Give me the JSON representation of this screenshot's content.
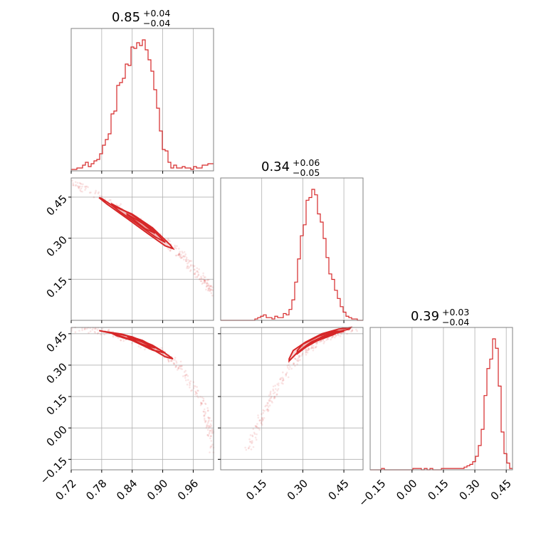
{
  "colors": {
    "series": "#d62728",
    "frame": "#808080",
    "grid": "#b0b0b0"
  },
  "chart_data": {
    "type": "corner",
    "parameters": [
      {
        "title": {
          "median": "0.85",
          "plus": "+0.04",
          "minus": "−0.04"
        },
        "range": [
          0.72,
          1.0
        ],
        "ticks": [
          0.72,
          0.78,
          0.84,
          0.9,
          0.96
        ],
        "tick_labels": [
          "0.72",
          "0.78",
          "0.84",
          "0.90",
          "0.96"
        ],
        "hist": {
          "bins": [
            0.72,
            0.7256,
            0.7312,
            0.7368,
            0.7424,
            0.748,
            0.7536,
            0.7592,
            0.7648,
            0.7704,
            0.776,
            0.7816,
            0.7872,
            0.7928,
            0.7984,
            0.804,
            0.8096,
            0.8152,
            0.8208,
            0.8264,
            0.832,
            0.8376,
            0.8432,
            0.8488,
            0.8544,
            0.86,
            0.8656,
            0.8712,
            0.8768,
            0.8824,
            0.888,
            0.8936,
            0.8992,
            0.9048,
            0.9104,
            0.916,
            0.9216,
            0.9272,
            0.9328,
            0.9384,
            0.944,
            0.9496,
            0.9552,
            0.9608,
            0.9664,
            0.972,
            0.9776,
            0.9832,
            0.9888,
            0.9944,
            1.0
          ],
          "counts": [
            1,
            1,
            2,
            2,
            4,
            6,
            3,
            5,
            7,
            8,
            12,
            18,
            22,
            26,
            40,
            42,
            60,
            62,
            65,
            75,
            74,
            87,
            86,
            90,
            88,
            92,
            85,
            78,
            70,
            57,
            44,
            28,
            15,
            14,
            6,
            2,
            4,
            2,
            2,
            3,
            2,
            2,
            1,
            3,
            2,
            2,
            4,
            4,
            5,
            5
          ]
        }
      },
      {
        "title": {
          "median": "0.34",
          "plus": "+0.06",
          "minus": "−0.05"
        },
        "range": [
          0.0,
          0.52
        ],
        "ticks": [
          0.15,
          0.3,
          0.45
        ],
        "tick_labels": [
          "0.15",
          "0.30",
          "0.45"
        ],
        "hist": {
          "bins": [
            0.0,
            0.0104,
            0.0208,
            0.0312,
            0.0416,
            0.052,
            0.0624,
            0.0728,
            0.0832,
            0.0936,
            0.104,
            0.1144,
            0.1248,
            0.1352,
            0.1456,
            0.156,
            0.1664,
            0.1768,
            0.1872,
            0.1976,
            0.208,
            0.2184,
            0.2288,
            0.2392,
            0.2496,
            0.26,
            0.2704,
            0.2808,
            0.2912,
            0.3016,
            0.312,
            0.3224,
            0.3328,
            0.3432,
            0.3536,
            0.364,
            0.3744,
            0.3848,
            0.3952,
            0.4056,
            0.416,
            0.4264,
            0.4368,
            0.4472,
            0.4576,
            0.468,
            0.4784,
            0.4888,
            0.4992,
            0.5096,
            0.52
          ],
          "counts": [
            0,
            0,
            0,
            0,
            0,
            0,
            0,
            0,
            0,
            0,
            0,
            0,
            1,
            2,
            3,
            4,
            2,
            2,
            1,
            3,
            2,
            2,
            5,
            4,
            8,
            15,
            28,
            45,
            62,
            70,
            88,
            90,
            96,
            92,
            78,
            72,
            60,
            46,
            34,
            30,
            22,
            16,
            10,
            6,
            3,
            2,
            1,
            1,
            0,
            0
          ]
        }
      },
      {
        "title": {
          "median": "0.39",
          "plus": "+0.03",
          "minus": "−0.04"
        },
        "range": [
          -0.2,
          0.48
        ],
        "ticks": [
          -0.15,
          0.0,
          0.15,
          0.3,
          0.45
        ],
        "tick_labels": [
          "−0.15",
          "0.00",
          "0.15",
          "0.30",
          "0.45"
        ],
        "hist": {
          "bins": [
            -0.2,
            -0.1864,
            -0.1728,
            -0.1592,
            -0.1456,
            -0.132,
            -0.1184,
            -0.1048,
            -0.0912,
            -0.0776,
            -0.064,
            -0.0504,
            -0.0368,
            -0.0232,
            -0.0096,
            0.004,
            0.0176,
            0.0312,
            0.0448,
            0.0584,
            0.072,
            0.0856,
            0.0992,
            0.1128,
            0.1264,
            0.14,
            0.1536,
            0.1672,
            0.1808,
            0.1944,
            0.208,
            0.2216,
            0.2352,
            0.2488,
            0.2624,
            0.276,
            0.2896,
            0.3032,
            0.3168,
            0.3304,
            0.344,
            0.3576,
            0.3712,
            0.3848,
            0.3984,
            0.412,
            0.4256,
            0.4392,
            0.4528,
            0.4664,
            0.48
          ],
          "counts": [
            0,
            0,
            0,
            0,
            1,
            0,
            0,
            0,
            0,
            0,
            0,
            0,
            0,
            0,
            0,
            1,
            1,
            1,
            0,
            1,
            0,
            1,
            0,
            0,
            0,
            1,
            1,
            1,
            1,
            1,
            1,
            1,
            1,
            2,
            3,
            4,
            6,
            10,
            18,
            30,
            55,
            75,
            82,
            97,
            90,
            62,
            28,
            12,
            5,
            1
          ]
        }
      }
    ],
    "scatter": {
      "p1_vs_p0": {
        "ridge": [
          [
            0.72,
            0.505
          ],
          [
            0.78,
            0.445
          ],
          [
            0.84,
            0.38
          ],
          [
            0.9,
            0.3
          ],
          [
            0.94,
            0.23
          ],
          [
            0.97,
            0.17
          ],
          [
            0.985,
            0.14
          ],
          [
            1.0,
            0.1
          ]
        ],
        "contours": [
          [
            [
              0.78,
              0.445
            ],
            [
              0.8,
              0.42
            ],
            [
              0.84,
              0.388
            ],
            [
              0.88,
              0.338
            ],
            [
              0.915,
              0.275
            ],
            [
              0.92,
              0.262
            ],
            [
              0.905,
              0.272
            ],
            [
              0.87,
              0.318
            ],
            [
              0.83,
              0.372
            ],
            [
              0.79,
              0.425
            ],
            [
              0.775,
              0.448
            ]
          ],
          [
            [
              0.8,
              0.425
            ],
            [
              0.84,
              0.385
            ],
            [
              0.88,
              0.332
            ],
            [
              0.905,
              0.285
            ],
            [
              0.885,
              0.305
            ],
            [
              0.85,
              0.352
            ],
            [
              0.815,
              0.398
            ],
            [
              0.8,
              0.42
            ]
          ],
          [
            [
              0.83,
              0.388
            ],
            [
              0.86,
              0.355
            ],
            [
              0.885,
              0.318
            ],
            [
              0.865,
              0.335
            ],
            [
              0.84,
              0.372
            ],
            [
              0.83,
              0.385
            ]
          ]
        ]
      },
      "p2_vs_p0": {
        "ridge": [
          [
            0.72,
            0.475
          ],
          [
            0.78,
            0.462
          ],
          [
            0.84,
            0.42
          ],
          [
            0.9,
            0.36
          ],
          [
            0.93,
            0.3
          ],
          [
            0.96,
            0.2
          ],
          [
            0.985,
            0.08
          ],
          [
            0.995,
            -0.02
          ],
          [
            1.0,
            -0.12
          ]
        ],
        "contours": [
          [
            [
              0.78,
              0.462
            ],
            [
              0.82,
              0.448
            ],
            [
              0.86,
              0.418
            ],
            [
              0.9,
              0.365
            ],
            [
              0.92,
              0.33
            ],
            [
              0.905,
              0.34
            ],
            [
              0.87,
              0.39
            ],
            [
              0.83,
              0.428
            ],
            [
              0.8,
              0.452
            ],
            [
              0.775,
              0.465
            ]
          ],
          [
            [
              0.8,
              0.455
            ],
            [
              0.84,
              0.435
            ],
            [
              0.88,
              0.395
            ],
            [
              0.905,
              0.358
            ],
            [
              0.88,
              0.372
            ],
            [
              0.84,
              0.418
            ],
            [
              0.81,
              0.44
            ],
            [
              0.8,
              0.452
            ]
          ],
          [
            [
              0.83,
              0.438
            ],
            [
              0.86,
              0.41
            ],
            [
              0.885,
              0.382
            ],
            [
              0.86,
              0.398
            ],
            [
              0.835,
              0.43
            ]
          ]
        ]
      },
      "p2_vs_p1": {
        "ridge": [
          [
            0.1,
            -0.1
          ],
          [
            0.15,
            0.05
          ],
          [
            0.2,
            0.18
          ],
          [
            0.25,
            0.28
          ],
          [
            0.3,
            0.36
          ],
          [
            0.35,
            0.41
          ],
          [
            0.4,
            0.44
          ],
          [
            0.45,
            0.465
          ],
          [
            0.49,
            0.48
          ]
        ],
        "contours": [
          [
            [
              0.25,
              0.32
            ],
            [
              0.28,
              0.36
            ],
            [
              0.32,
              0.4
            ],
            [
              0.37,
              0.435
            ],
            [
              0.42,
              0.458
            ],
            [
              0.47,
              0.472
            ],
            [
              0.475,
              0.48
            ],
            [
              0.43,
              0.472
            ],
            [
              0.37,
              0.45
            ],
            [
              0.31,
              0.41
            ],
            [
              0.265,
              0.37
            ],
            [
              0.25,
              0.33
            ]
          ],
          [
            [
              0.28,
              0.355
            ],
            [
              0.32,
              0.395
            ],
            [
              0.37,
              0.43
            ],
            [
              0.42,
              0.452
            ],
            [
              0.45,
              0.462
            ],
            [
              0.42,
              0.462
            ],
            [
              0.36,
              0.44
            ],
            [
              0.3,
              0.4
            ],
            [
              0.28,
              0.37
            ]
          ],
          [
            [
              0.31,
              0.385
            ],
            [
              0.35,
              0.415
            ],
            [
              0.4,
              0.44
            ],
            [
              0.42,
              0.45
            ],
            [
              0.38,
              0.44
            ],
            [
              0.33,
              0.41
            ],
            [
              0.31,
              0.39
            ]
          ]
        ]
      }
    }
  }
}
